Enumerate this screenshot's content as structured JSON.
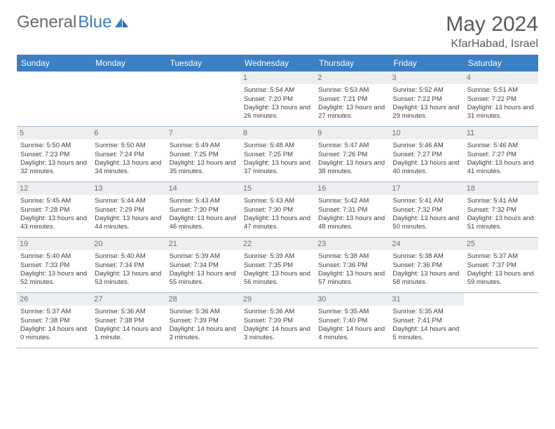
{
  "brand": {
    "part1": "General",
    "part2": "Blue"
  },
  "title": "May 2024",
  "location": "KfarHabad, Israel",
  "colors": {
    "header_bg": "#3b7fc4",
    "header_text": "#ffffff",
    "daynum_bg": "#eceef0",
    "daynum_text": "#707070",
    "body_text": "#404040",
    "border": "#a8b8cc",
    "logo_gray": "#6a6a6a",
    "logo_blue": "#3b7fc4"
  },
  "weekdays": [
    "Sunday",
    "Monday",
    "Tuesday",
    "Wednesday",
    "Thursday",
    "Friday",
    "Saturday"
  ],
  "weeks": [
    [
      null,
      null,
      null,
      {
        "n": "1",
        "sr": "5:54 AM",
        "ss": "7:20 PM",
        "dl": "13 hours and 26 minutes."
      },
      {
        "n": "2",
        "sr": "5:53 AM",
        "ss": "7:21 PM",
        "dl": "13 hours and 27 minutes."
      },
      {
        "n": "3",
        "sr": "5:52 AM",
        "ss": "7:22 PM",
        "dl": "13 hours and 29 minutes."
      },
      {
        "n": "4",
        "sr": "5:51 AM",
        "ss": "7:22 PM",
        "dl": "13 hours and 31 minutes."
      }
    ],
    [
      {
        "n": "5",
        "sr": "5:50 AM",
        "ss": "7:23 PM",
        "dl": "13 hours and 32 minutes."
      },
      {
        "n": "6",
        "sr": "5:50 AM",
        "ss": "7:24 PM",
        "dl": "13 hours and 34 minutes."
      },
      {
        "n": "7",
        "sr": "5:49 AM",
        "ss": "7:25 PM",
        "dl": "13 hours and 35 minutes."
      },
      {
        "n": "8",
        "sr": "5:48 AM",
        "ss": "7:25 PM",
        "dl": "13 hours and 37 minutes."
      },
      {
        "n": "9",
        "sr": "5:47 AM",
        "ss": "7:26 PM",
        "dl": "13 hours and 38 minutes."
      },
      {
        "n": "10",
        "sr": "5:46 AM",
        "ss": "7:27 PM",
        "dl": "13 hours and 40 minutes."
      },
      {
        "n": "11",
        "sr": "5:46 AM",
        "ss": "7:27 PM",
        "dl": "13 hours and 41 minutes."
      }
    ],
    [
      {
        "n": "12",
        "sr": "5:45 AM",
        "ss": "7:28 PM",
        "dl": "13 hours and 43 minutes."
      },
      {
        "n": "13",
        "sr": "5:44 AM",
        "ss": "7:29 PM",
        "dl": "13 hours and 44 minutes."
      },
      {
        "n": "14",
        "sr": "5:43 AM",
        "ss": "7:30 PM",
        "dl": "13 hours and 46 minutes."
      },
      {
        "n": "15",
        "sr": "5:43 AM",
        "ss": "7:30 PM",
        "dl": "13 hours and 47 minutes."
      },
      {
        "n": "16",
        "sr": "5:42 AM",
        "ss": "7:31 PM",
        "dl": "13 hours and 48 minutes."
      },
      {
        "n": "17",
        "sr": "5:41 AM",
        "ss": "7:32 PM",
        "dl": "13 hours and 50 minutes."
      },
      {
        "n": "18",
        "sr": "5:41 AM",
        "ss": "7:32 PM",
        "dl": "13 hours and 51 minutes."
      }
    ],
    [
      {
        "n": "19",
        "sr": "5:40 AM",
        "ss": "7:33 PM",
        "dl": "13 hours and 52 minutes."
      },
      {
        "n": "20",
        "sr": "5:40 AM",
        "ss": "7:34 PM",
        "dl": "13 hours and 53 minutes."
      },
      {
        "n": "21",
        "sr": "5:39 AM",
        "ss": "7:34 PM",
        "dl": "13 hours and 55 minutes."
      },
      {
        "n": "22",
        "sr": "5:39 AM",
        "ss": "7:35 PM",
        "dl": "13 hours and 56 minutes."
      },
      {
        "n": "23",
        "sr": "5:38 AM",
        "ss": "7:36 PM",
        "dl": "13 hours and 57 minutes."
      },
      {
        "n": "24",
        "sr": "5:38 AM",
        "ss": "7:36 PM",
        "dl": "13 hours and 58 minutes."
      },
      {
        "n": "25",
        "sr": "5:37 AM",
        "ss": "7:37 PM",
        "dl": "13 hours and 59 minutes."
      }
    ],
    [
      {
        "n": "26",
        "sr": "5:37 AM",
        "ss": "7:38 PM",
        "dl": "14 hours and 0 minutes."
      },
      {
        "n": "27",
        "sr": "5:36 AM",
        "ss": "7:38 PM",
        "dl": "14 hours and 1 minute."
      },
      {
        "n": "28",
        "sr": "5:36 AM",
        "ss": "7:39 PM",
        "dl": "14 hours and 2 minutes."
      },
      {
        "n": "29",
        "sr": "5:36 AM",
        "ss": "7:39 PM",
        "dl": "14 hours and 3 minutes."
      },
      {
        "n": "30",
        "sr": "5:35 AM",
        "ss": "7:40 PM",
        "dl": "14 hours and 4 minutes."
      },
      {
        "n": "31",
        "sr": "5:35 AM",
        "ss": "7:41 PM",
        "dl": "14 hours and 5 minutes."
      },
      null
    ]
  ],
  "labels": {
    "sunrise": "Sunrise: ",
    "sunset": "Sunset: ",
    "daylight": "Daylight: "
  }
}
